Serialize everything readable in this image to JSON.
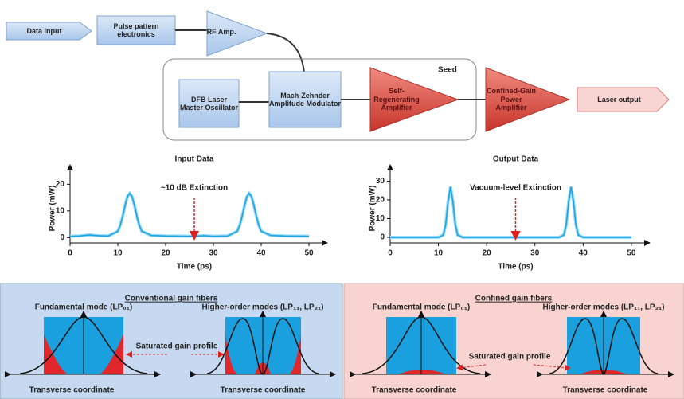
{
  "diagram": {
    "data_input": "Data input",
    "pulse_pattern": "Pulse pattern electronics",
    "rf_amp": "RF Amp.",
    "seed": "Seed",
    "dfb": "DFB Laser Master Oscillator",
    "modulator": "Mach-Zehnder Amplitude Modulator",
    "self_amp": "Self-Regenerating Amplifier",
    "power_amp": "Confined-Gain Power Amplifier",
    "laser_output": "Laser output"
  },
  "chart_data": [
    {
      "type": "line",
      "title": "Input Data",
      "xlabel": "Time (ps)",
      "ylabel": "Power (mW)",
      "annotation": "~10 dB Extinction",
      "color": "#1fa3e0",
      "x": [
        0,
        2,
        4,
        6,
        8,
        10,
        10.5,
        11,
        11.5,
        12,
        12.5,
        13,
        13.5,
        14,
        14.5,
        15,
        17,
        20,
        25,
        28,
        30,
        33,
        35,
        35.5,
        36,
        36.5,
        37,
        37.5,
        38,
        38.5,
        39,
        39.5,
        40,
        42,
        45,
        50
      ],
      "values": [
        0.5,
        0.6,
        1.0,
        0.7,
        0.6,
        2.4,
        4.6,
        7.9,
        11.9,
        15.3,
        16.6,
        15.3,
        11.9,
        7.9,
        4.6,
        2.4,
        0.8,
        0.6,
        0.5,
        0.7,
        0.5,
        0.6,
        2.4,
        4.6,
        7.9,
        11.9,
        15.3,
        16.6,
        15.3,
        11.9,
        7.9,
        4.6,
        2.4,
        0.8,
        0.6,
        0.5
      ],
      "xlim": [
        0,
        52
      ],
      "ylim": [
        -2,
        24
      ],
      "xticks": [
        0,
        10,
        20,
        30,
        40,
        50
      ],
      "yticks": [
        0,
        10,
        20
      ]
    },
    {
      "type": "line",
      "title": "Output Data",
      "xlabel": "Time (ps)",
      "ylabel": "Power (mW)",
      "annotation": "Vacuum-level Extinction",
      "color": "#1fa3e0",
      "x": [
        0,
        10,
        11,
        11.5,
        12,
        12.5,
        13,
        13.5,
        14,
        15,
        25,
        35,
        36,
        36.5,
        37,
        37.5,
        38,
        38.5,
        39,
        40,
        50
      ],
      "values": [
        0,
        0,
        1.2,
        6.7,
        19.1,
        27,
        19.1,
        6.7,
        1.2,
        0,
        0,
        0,
        1.2,
        6.7,
        19.1,
        27,
        19.1,
        6.7,
        1.2,
        0,
        0
      ],
      "xlim": [
        0,
        52
      ],
      "ylim": [
        -3,
        34
      ],
      "xticks": [
        0,
        10,
        20,
        30,
        40,
        50
      ],
      "yticks": [
        0,
        10,
        20,
        30
      ]
    }
  ],
  "panels": [
    {
      "title": "Conventional gain fibers",
      "fundamental": "Fundamental mode (LP₀₁)",
      "higher": "Higher-order modes (LP₁₁, LP₂₁)",
      "gain": "Saturated gain profile",
      "axis_left": "Transverse coordinate",
      "axis_right": "Transverse coordinate"
    },
    {
      "title": "Confined gain fibers",
      "fundamental": "Fundamental mode (LP₀₁)",
      "higher": "Higher-order modes (LP₁₁, LP₂₁)",
      "gain": "Saturated gain profile",
      "axis_left": "Transverse coordinate",
      "axis_right": "Transverse coordinate"
    }
  ]
}
